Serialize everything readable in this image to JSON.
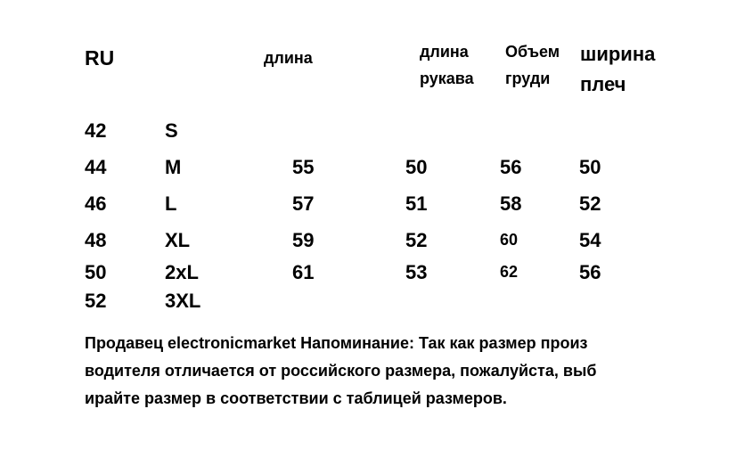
{
  "headers": {
    "ru": "RU",
    "length": "длина",
    "sleeve_line1": "длина",
    "sleeve_line2": "рукава",
    "chest_line1": "Объем",
    "chest_line2": "груди",
    "shoulders_line1": "ширина",
    "shoulders_line2": "плеч"
  },
  "rows": [
    {
      "ru": "42",
      "size": "S",
      "length": "",
      "sleeve": "",
      "chest": "",
      "shoulders": ""
    },
    {
      "ru": "44",
      "size": "M",
      "length": "55",
      "sleeve": "50",
      "chest": "56",
      "shoulders": "50"
    },
    {
      "ru": "46",
      "size": "L",
      "length": "57",
      "sleeve": "51",
      "chest": "58",
      "shoulders": "52"
    },
    {
      "ru": "48",
      "size": "XL",
      "length": "59",
      "sleeve": "52",
      "chest": "60",
      "shoulders": "54"
    },
    {
      "ru": "50",
      "size": "2xL",
      "length": "61",
      "sleeve": "53",
      "chest": "62",
      "shoulders": "56"
    },
    {
      "ru": "52",
      "size": "3XL",
      "length": "",
      "sleeve": "",
      "chest": "",
      "shoulders": ""
    }
  ],
  "note": {
    "line1": "Продавец electronicmarket Напоминание: Так как размер произ",
    "line2": "водителя отличается от российского размера, пожалуйста, выб",
    "line3": "ирайте размер в соответствии с таблицей размеров."
  }
}
